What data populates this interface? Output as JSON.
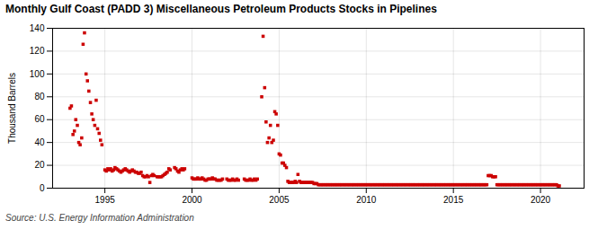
{
  "chart_data": {
    "type": "scatter",
    "title": "Monthly Gulf Coast (PADD 3) Miscellaneous Petroleum Products Stocks in Pipelines",
    "ylabel": "Thousand Barrels",
    "source": "Source: U.S. Energy Information Administration",
    "color": "#cc0000",
    "marker": "square",
    "grid": true,
    "xlim": [
      1992.0,
      2022.5
    ],
    "ylim": [
      0,
      140
    ],
    "xticks": [
      1995,
      2000,
      2005,
      2010,
      2015,
      2020
    ],
    "yticks": [
      0,
      20,
      40,
      60,
      80,
      100,
      120,
      140
    ],
    "x": [
      1993.0,
      1993.08,
      1993.17,
      1993.25,
      1993.33,
      1993.42,
      1993.5,
      1993.58,
      1993.67,
      1993.75,
      1993.83,
      1993.92,
      1994.0,
      1994.08,
      1994.17,
      1994.25,
      1994.33,
      1994.42,
      1994.5,
      1994.58,
      1994.67,
      1994.75,
      1994.83,
      1995.0,
      1995.08,
      1995.17,
      1995.25,
      1995.33,
      1995.42,
      1995.5,
      1995.58,
      1995.67,
      1995.75,
      1995.83,
      1995.92,
      1996.0,
      1996.08,
      1996.17,
      1996.25,
      1996.33,
      1996.42,
      1996.5,
      1996.58,
      1996.67,
      1996.75,
      1996.83,
      1996.92,
      1997.0,
      1997.08,
      1997.17,
      1997.25,
      1997.33,
      1997.42,
      1997.5,
      1997.58,
      1997.67,
      1997.75,
      1997.83,
      1998.0,
      1998.08,
      1998.17,
      1998.25,
      1998.33,
      1998.42,
      1998.5,
      1998.58,
      1998.67,
      1998.75,
      1999.0,
      1999.08,
      1999.17,
      1999.25,
      1999.33,
      1999.42,
      1999.5,
      1999.58,
      2000.0,
      2000.08,
      2000.17,
      2000.25,
      2000.33,
      2000.42,
      2000.5,
      2000.58,
      2000.67,
      2000.75,
      2000.83,
      2000.92,
      2001.0,
      2001.08,
      2001.17,
      2001.25,
      2001.33,
      2001.42,
      2001.5,
      2001.58,
      2001.67,
      2001.75,
      2002.0,
      2002.08,
      2002.17,
      2002.25,
      2002.33,
      2002.42,
      2002.5,
      2002.58,
      2002.67,
      2003.0,
      2003.08,
      2003.17,
      2003.25,
      2003.33,
      2003.42,
      2003.5,
      2003.58,
      2003.67,
      2003.75,
      2004.0,
      2004.08,
      2004.17,
      2004.25,
      2004.33,
      2004.42,
      2004.5,
      2004.58,
      2004.67,
      2004.75,
      2004.83,
      2004.92,
      2005.0,
      2005.08,
      2005.17,
      2005.25,
      2005.33,
      2005.42,
      2005.5,
      2005.58,
      2005.67,
      2005.75,
      2005.83,
      2005.92,
      2006.0,
      2006.08,
      2006.17,
      2006.25,
      2006.33,
      2006.42,
      2006.5,
      2006.58,
      2006.67,
      2006.75,
      2006.83,
      2006.92,
      2007.0,
      2007.08,
      2007.17,
      2007.25,
      2007.33,
      2007.42,
      2007.5,
      2007.58,
      2007.67,
      2007.75,
      2007.83,
      2007.92,
      2008.0,
      2008.08,
      2008.17,
      2008.25,
      2008.33,
      2008.42,
      2008.5,
      2008.58,
      2008.67,
      2008.75,
      2008.83,
      2008.92,
      2009.0,
      2009.08,
      2009.17,
      2009.25,
      2009.33,
      2009.42,
      2009.5,
      2009.58,
      2009.67,
      2009.75,
      2009.83,
      2009.92,
      2010.0,
      2010.08,
      2010.17,
      2010.25,
      2010.33,
      2010.42,
      2010.5,
      2010.58,
      2010.67,
      2010.75,
      2010.83,
      2010.92,
      2011.0,
      2011.08,
      2011.17,
      2011.25,
      2011.33,
      2011.42,
      2011.5,
      2011.58,
      2011.67,
      2011.75,
      2011.83,
      2011.92,
      2012.0,
      2012.08,
      2012.17,
      2012.25,
      2012.33,
      2012.42,
      2012.5,
      2012.58,
      2012.67,
      2012.75,
      2012.83,
      2012.92,
      2013.0,
      2013.08,
      2013.17,
      2013.25,
      2013.33,
      2013.42,
      2013.5,
      2013.58,
      2013.67,
      2013.75,
      2013.83,
      2013.92,
      2014.0,
      2014.08,
      2014.17,
      2014.25,
      2014.33,
      2014.42,
      2014.5,
      2014.58,
      2014.67,
      2014.75,
      2014.83,
      2014.92,
      2015.0,
      2015.08,
      2015.17,
      2015.25,
      2015.33,
      2015.42,
      2015.5,
      2015.58,
      2015.67,
      2015.75,
      2015.83,
      2015.92,
      2016.0,
      2016.08,
      2016.17,
      2016.25,
      2016.33,
      2016.42,
      2016.5,
      2016.58,
      2016.67,
      2016.75,
      2016.83,
      2016.92,
      2017.0,
      2017.08,
      2017.17,
      2017.25,
      2017.33,
      2017.42,
      2017.5,
      2017.58,
      2017.67,
      2017.75,
      2017.83,
      2017.92,
      2018.0,
      2018.08,
      2018.17,
      2018.25,
      2018.33,
      2018.42,
      2018.5,
      2018.58,
      2018.67,
      2018.75,
      2018.83,
      2018.92,
      2019.0,
      2019.08,
      2019.17,
      2019.25,
      2019.33,
      2019.42,
      2019.5,
      2019.58,
      2019.67,
      2019.75,
      2019.83,
      2019.92,
      2020.0,
      2020.08,
      2020.17,
      2020.25,
      2020.33,
      2020.42,
      2020.5,
      2020.58,
      2020.67,
      2020.75,
      2020.83,
      2020.92,
      2021.0,
      2021.08
    ],
    "values": [
      70,
      72,
      47,
      50,
      60,
      55,
      40,
      38,
      44,
      126,
      136,
      100,
      94,
      85,
      75,
      65,
      60,
      55,
      77,
      52,
      48,
      42,
      38,
      16,
      15,
      17,
      16,
      17,
      15,
      16,
      18,
      17,
      16,
      15,
      14,
      15,
      16,
      17,
      16,
      15,
      14,
      15,
      16,
      15,
      14,
      14,
      13,
      13,
      14,
      11,
      10,
      10,
      11,
      10,
      5,
      11,
      12,
      11,
      10,
      10,
      10,
      10,
      11,
      12,
      13,
      14,
      17,
      16,
      18,
      17,
      15,
      14,
      16,
      17,
      16,
      17,
      9,
      8,
      8,
      8,
      9,
      8,
      8,
      9,
      8,
      7,
      7,
      8,
      8,
      8,
      9,
      8,
      8,
      7,
      7,
      7,
      7,
      8,
      8,
      7,
      7,
      7,
      8,
      7,
      7,
      8,
      7,
      8,
      7,
      7,
      7,
      8,
      7,
      7,
      8,
      7,
      8,
      80,
      133,
      88,
      58,
      40,
      44,
      55,
      40,
      42,
      67,
      65,
      55,
      30,
      29,
      22,
      22,
      20,
      18,
      6,
      5,
      5,
      5,
      5,
      6,
      5,
      12,
      6,
      5,
      5,
      5,
      5,
      5,
      5,
      5,
      5,
      5,
      4,
      4,
      4,
      3,
      3,
      3,
      3,
      3,
      3,
      3,
      3,
      3,
      3,
      3,
      3,
      3,
      3,
      3,
      3,
      3,
      3,
      3,
      3,
      3,
      3,
      3,
      3,
      3,
      3,
      3,
      3,
      3,
      3,
      3,
      3,
      3,
      3,
      3,
      3,
      3,
      3,
      3,
      3,
      3,
      3,
      3,
      3,
      3,
      3,
      3,
      3,
      3,
      3,
      3,
      3,
      3,
      3,
      3,
      3,
      3,
      3,
      3,
      3,
      3,
      3,
      3,
      3,
      3,
      3,
      3,
      3,
      3,
      3,
      3,
      3,
      3,
      3,
      3,
      3,
      3,
      3,
      3,
      3,
      3,
      3,
      3,
      3,
      3,
      3,
      3,
      3,
      3,
      3,
      3,
      3,
      3,
      3,
      3,
      3,
      3,
      3,
      3,
      3,
      3,
      3,
      3,
      3,
      3,
      3,
      3,
      3,
      3,
      3,
      3,
      3,
      3,
      3,
      3,
      3,
      3,
      11,
      11,
      11,
      10,
      10,
      10,
      3,
      3,
      3,
      3,
      3,
      3,
      3,
      3,
      3,
      3,
      3,
      3,
      3,
      3,
      3,
      3,
      3,
      3,
      3,
      3,
      3,
      3,
      3,
      3,
      3,
      3,
      3,
      3,
      3,
      3,
      3,
      3,
      3,
      3,
      3,
      3,
      3,
      3,
      3,
      3,
      3,
      3,
      2,
      2
    ]
  }
}
